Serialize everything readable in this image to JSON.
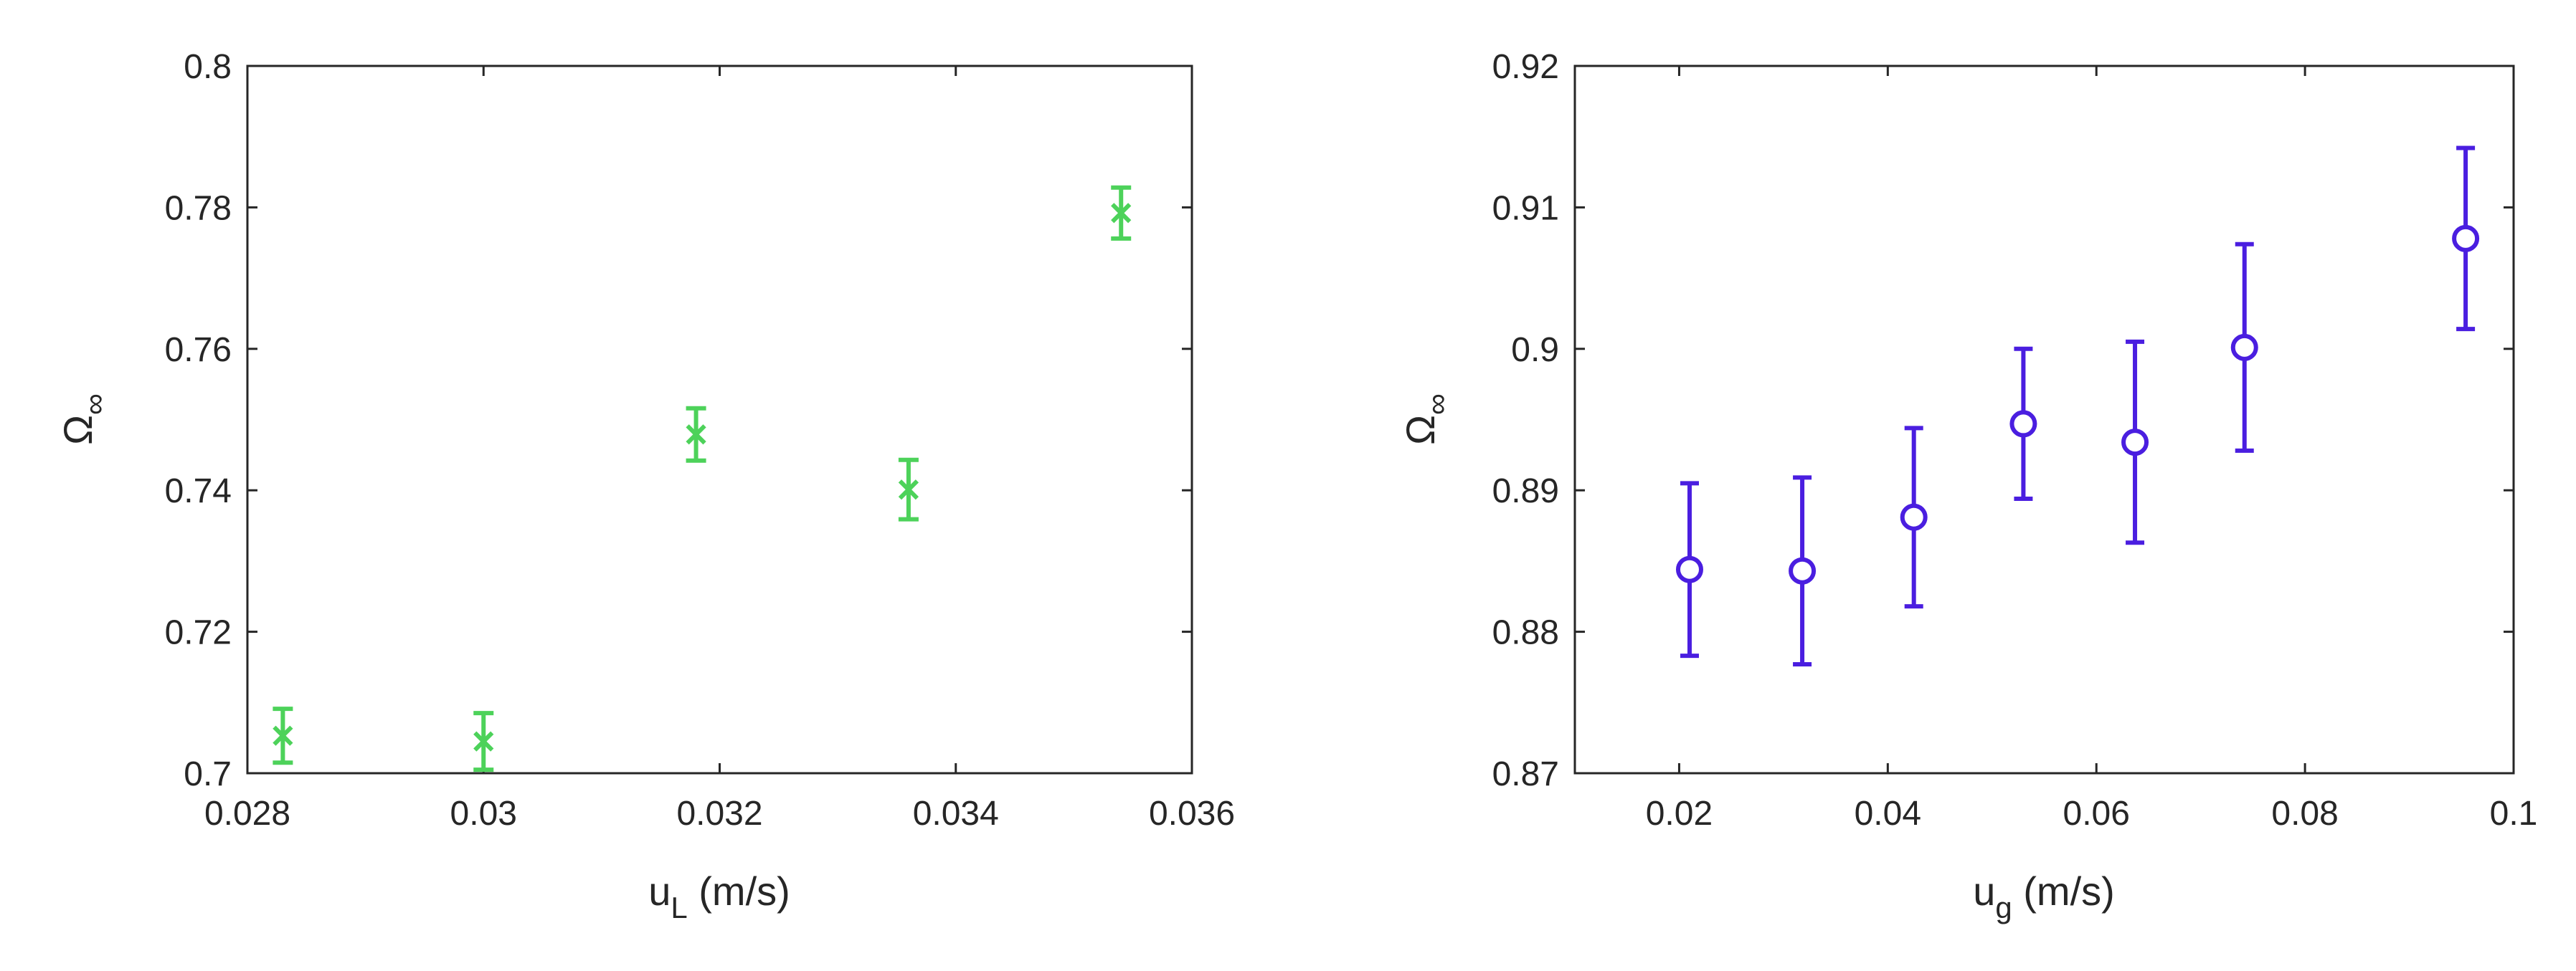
{
  "chart_data": [
    {
      "type": "scatter",
      "xlabel": "u",
      "xlabel_sub": "L",
      "xlabel_unit": " (m/s)",
      "ylabel": "Ω",
      "ylabel_sub": "∞",
      "xlim": [
        0.028,
        0.036
      ],
      "ylim": [
        0.7,
        0.8
      ],
      "xticks": [
        "0.028",
        "0.03",
        "0.032",
        "0.034",
        "0.036"
      ],
      "yticks": [
        "0.7",
        "0.72",
        "0.74",
        "0.76",
        "0.78",
        "0.8"
      ],
      "marker": "x",
      "color": "#4dd25a",
      "grid": false,
      "x": [
        0.0283,
        0.03,
        0.0318,
        0.0336,
        0.0354
      ],
      "y": [
        0.7053,
        0.7045,
        0.7479,
        0.7401,
        0.7792
      ],
      "err": [
        0.0038,
        0.004,
        0.0037,
        0.0042,
        0.0036
      ]
    },
    {
      "type": "scatter",
      "xlabel": "u",
      "xlabel_sub": "g",
      "xlabel_unit": " (m/s)",
      "ylabel": "Ω",
      "ylabel_sub": "∞",
      "xlim": [
        0.01,
        0.1
      ],
      "ylim": [
        0.87,
        0.92
      ],
      "xticks": [
        "0.02",
        "0.04",
        "0.06",
        "0.08",
        "0.1"
      ],
      "yticks": [
        "0.87",
        "0.88",
        "0.89",
        "0.9",
        "0.91",
        "0.92"
      ],
      "marker": "o",
      "color": "#4a1ee0",
      "grid": false,
      "x": [
        0.021,
        0.0318,
        0.0425,
        0.053,
        0.0637,
        0.0742,
        0.0954
      ],
      "y": [
        0.8844,
        0.8843,
        0.8881,
        0.8947,
        0.8934,
        0.9001,
        0.9078
      ],
      "err": [
        0.0061,
        0.0066,
        0.0063,
        0.0053,
        0.0071,
        0.0073,
        0.0064
      ]
    }
  ]
}
